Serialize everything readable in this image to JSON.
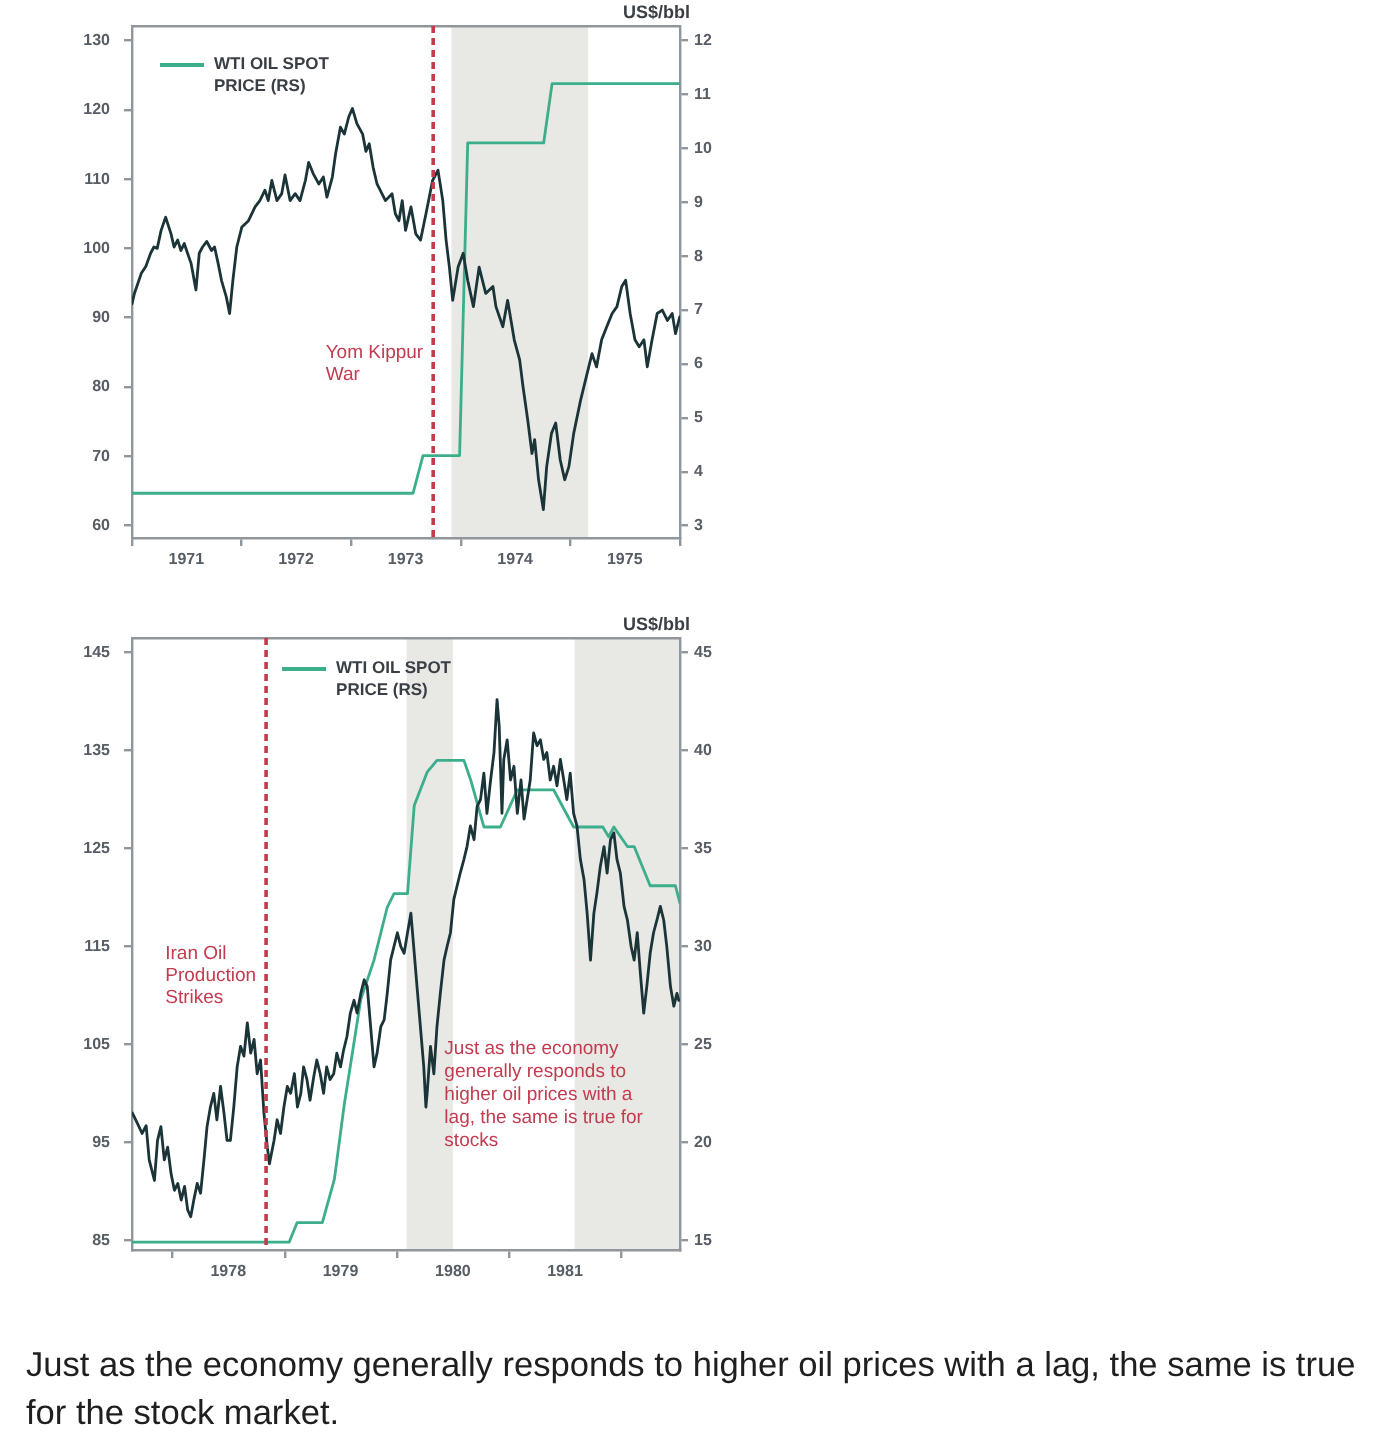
{
  "chart_data": [
    {
      "type": "line",
      "legend": "top left",
      "grid": false,
      "marker": "none",
      "y2label": "US$/bbl",
      "xlim": [
        "1971-01-01",
        "1976-01-01"
      ],
      "xticks": [
        {
          "value": "1971",
          "label": null
        },
        {
          "value": "1971-07",
          "label": "1971"
        },
        {
          "value": "1972",
          "label": null
        },
        {
          "value": "1972-07",
          "label": "1972"
        },
        {
          "value": "1973",
          "label": null
        },
        {
          "value": "1973-07",
          "label": "1973"
        },
        {
          "value": "1974",
          "label": null
        },
        {
          "value": "1974-07",
          "label": "1974"
        },
        {
          "value": "1975",
          "label": null
        },
        {
          "value": "1975-07",
          "label": "1975"
        },
        {
          "value": "1976",
          "label": null
        }
      ],
      "ylim": [
        58.2,
        132.1
      ],
      "yticks": [
        60,
        70,
        80,
        90,
        100,
        110,
        120,
        130
      ],
      "y2lim": [
        2.77,
        12.27
      ],
      "y2ticks": [
        3,
        4,
        5,
        6,
        7,
        8,
        9,
        10,
        11,
        12
      ],
      "ref_lines": [
        {
          "axis": "x",
          "value": "1973-10",
          "label": "Yom Kippur War",
          "color": "#c23b4e",
          "line_style": "dashed"
        }
      ],
      "bands": [
        {
          "axis": "x",
          "from": "1973-12",
          "to": "1975-03",
          "color": "#e8e8e4"
        }
      ],
      "series": [
        {
          "color": "#1b3438",
          "x": [
            "1971-01-01",
            "1971-01-09",
            "1971-02-01",
            "1971-02-16",
            "1971-03-04",
            "1971-03-15",
            "1971-03-26",
            "1971-04-08",
            "1971-04-23",
            "1971-05-11",
            "1971-05-21",
            "1971-06-02",
            "1971-06-13",
            "1971-06-24",
            "1971-07-05",
            "1971-07-17",
            "1971-08-02",
            "1971-08-13",
            "1971-08-24",
            "1971-09-07",
            "1971-09-23",
            "1971-10-03",
            "1971-10-15",
            "1971-10-26",
            "1971-11-11",
            "1971-11-22",
            "1971-12-03",
            "1971-12-16",
            "1972-01-02",
            "1972-01-24",
            "1972-02-15",
            "1972-03-02",
            "1972-03-19",
            "1972-03-30",
            "1972-04-11",
            "1972-04-28",
            "1972-05-14",
            "1972-05-25",
            "1972-06-11",
            "1972-06-28",
            "1972-07-14",
            "1972-08-01",
            "1972-08-12",
            "1972-08-27",
            "1972-09-15",
            "1972-09-30",
            "1972-10-12",
            "1972-10-30",
            "1972-11-10",
            "1972-11-26",
            "1972-12-09",
            "1972-12-24",
            "1973-01-05",
            "1973-01-20",
            "1973-02-08",
            "1973-02-19",
            "1973-03-02",
            "1973-03-15",
            "1973-03-28",
            "1973-04-25",
            "1973-05-17",
            "1973-05-28",
            "1973-06-09",
            "1973-06-20",
            "1973-07-01",
            "1973-07-19",
            "1973-08-04",
            "1973-08-20",
            "1973-09-07",
            "1973-09-29",
            "1973-10-17",
            "1973-11-02",
            "1973-11-13",
            "1973-11-24",
            "1973-12-05",
            "1973-12-23",
            "1974-01-09",
            "1974-01-24",
            "1974-02-12",
            "1974-03-03",
            "1974-03-25",
            "1974-04-18",
            "1974-04-28",
            "1974-05-21",
            "1974-06-06",
            "1974-06-28",
            "1974-07-16",
            "1974-07-27",
            "1974-08-12",
            "1974-08-26",
            "1974-09-04",
            "1974-09-17",
            "1974-10-03",
            "1974-10-14",
            "1974-10-30",
            "1974-11-13",
            "1974-11-28",
            "1974-12-13",
            "1974-12-27",
            "1975-01-12",
            "1975-02-04",
            "1975-02-26",
            "1975-03-14",
            "1975-03-29",
            "1975-04-15",
            "1975-05-02",
            "1975-05-20",
            "1975-06-05",
            "1975-06-21",
            "1975-07-04",
            "1975-07-19",
            "1975-08-04",
            "1975-08-18",
            "1975-09-03",
            "1975-09-14",
            "1975-09-30",
            "1975-10-17",
            "1975-11-03",
            "1975-11-20",
            "1975-12-06",
            "1975-12-17",
            "1975-12-31"
          ],
          "values": [
            92,
            93.5,
            96.4,
            97.4,
            99.3,
            100.2,
            100,
            102.6,
            104.5,
            102.1,
            100.2,
            101.2,
            99.7,
            100.7,
            99.3,
            97.8,
            94,
            99.3,
            100.2,
            101,
            99.7,
            100.2,
            97.8,
            95.4,
            93,
            90.6,
            95.4,
            100.2,
            103.1,
            104,
            106,
            106.9,
            108.4,
            106.9,
            109.8,
            106.9,
            107.9,
            110.6,
            106.9,
            107.9,
            106.9,
            109.8,
            112.4,
            110.8,
            109.3,
            110.3,
            107.4,
            110.3,
            113.7,
            117.5,
            116.5,
            119,
            120.2,
            118,
            116.5,
            114,
            115.1,
            111.7,
            109.3,
            106.9,
            107.9,
            105,
            104,
            106.9,
            102.6,
            106,
            102.1,
            101.2,
            105,
            109.8,
            111.3,
            106.9,
            101.2,
            97.3,
            92.5,
            97.3,
            99.3,
            95.4,
            91.6,
            97.3,
            93.5,
            94.5,
            91.6,
            88.7,
            92.5,
            86.8,
            83.9,
            80.1,
            75.2,
            70.4,
            72.4,
            66.6,
            62.3,
            68.5,
            73.3,
            74.8,
            69.5,
            66.6,
            68.5,
            73.3,
            78.1,
            82,
            84.8,
            82.9,
            86.8,
            88.7,
            90.6,
            91.6,
            94.5,
            95.4,
            90.6,
            86.8,
            85.8,
            86.8,
            82.9,
            86.8,
            90.6,
            91.1,
            89.6,
            90.6,
            87.7,
            90.1
          ]
        },
        {
          "name": "WTI OIL SPOT PRICE (RS)",
          "color": "#3cae8c",
          "axis": "y2",
          "x": [
            "1971-01-01",
            "1973-07-26",
            "1973-08-28",
            "1973-12-28",
            "1974-01-24",
            "1974-10-04",
            "1974-11-01",
            "1976-01-01"
          ],
          "values": [
            3.6,
            3.6,
            4.3,
            4.3,
            10.1,
            10.1,
            11.2,
            11.2
          ]
        }
      ]
    },
    {
      "type": "line",
      "legend": "top left",
      "grid": false,
      "marker": "none",
      "y2label": "US$/bbl",
      "xlim": [
        "1977-08-22",
        "1982-07-10"
      ],
      "xticks": [
        {
          "value": "1978",
          "label": null
        },
        {
          "value": "1978-07",
          "label": "1978"
        },
        {
          "value": "1979",
          "label": null
        },
        {
          "value": "1979-07",
          "label": "1979"
        },
        {
          "value": "1980",
          "label": null
        },
        {
          "value": "1980-07",
          "label": "1980"
        },
        {
          "value": "1981",
          "label": null
        },
        {
          "value": "1981-07",
          "label": "1981"
        },
        {
          "value": "1982",
          "label": null
        }
      ],
      "ylim": [
        84,
        146.5
      ],
      "yticks": [
        85,
        95,
        105,
        115,
        125,
        135,
        145
      ],
      "y2lim": [
        14.5,
        45.75
      ],
      "y2ticks": [
        15,
        20,
        25,
        30,
        35,
        40,
        45
      ],
      "ref_lines": [
        {
          "axis": "x",
          "value": "1978-11",
          "label": "Iran Oil Production Strikes",
          "color": "#c23b4e",
          "line_style": "dashed"
        }
      ],
      "bands": [
        {
          "axis": "x",
          "from": "1980-02",
          "to": "1980-07",
          "color": "#e8e8e4"
        },
        {
          "axis": "x",
          "from": "1981-08",
          "to": "1982-07-10",
          "color": "#e8e8e4"
        }
      ],
      "annotations": [
        "Just as the economy generally responds to higher oil prices with a lag, the same is true for stocks",
        "Just as the economy generally responds to higher oil prices with a lag, the same is true for the stock market."
      ],
      "series": [
        {
          "color": "#1b3438",
          "x": [
            "1977-08-23",
            "1977-09-09",
            "1977-09-24",
            "1977-10-07",
            "1977-10-17",
            "1977-11-03",
            "1977-11-13",
            "1977-11-24",
            "1977-12-05",
            "1977-12-16",
            "1977-12-27",
            "1978-01-07",
            "1978-01-18",
            "1978-01-29",
            "1978-02-09",
            "1978-02-19",
            "1978-03-01",
            "1978-03-11",
            "1978-03-22",
            "1978-04-02",
            "1978-04-13",
            "1978-04-23",
            "1978-05-04",
            "1978-05-15",
            "1978-05-25",
            "1978-06-06",
            "1978-06-17",
            "1978-06-27",
            "1978-07-08",
            "1978-07-19",
            "1978-07-30",
            "1978-08-10",
            "1978-08-21",
            "1978-09-01",
            "1978-09-12",
            "1978-09-23",
            "1978-10-03",
            "1978-10-14",
            "1978-10-25",
            "1978-11-05",
            "1978-11-12",
            "1978-11-27",
            "1978-12-07",
            "1978-12-18",
            "1978-12-29",
            "1979-01-09",
            "1979-01-20",
            "1979-02-01",
            "1979-02-11",
            "1979-02-22",
            "1979-03-03",
            "1979-03-14",
            "1979-03-24",
            "1979-04-05",
            "1979-04-15",
            "1979-04-26",
            "1979-05-07",
            "1979-05-17",
            "1979-05-28",
            "1979-06-09",
            "1979-06-19",
            "1979-07-01",
            "1979-07-11",
            "1979-07-22",
            "1979-08-02",
            "1979-08-14",
            "1979-08-24",
            "1979-09-05",
            "1979-09-16",
            "1979-09-26",
            "1979-10-18",
            "1979-10-28",
            "1979-11-09",
            "1979-11-20",
            "1979-11-30",
            "1979-12-11",
            "1979-12-22",
            "1980-01-02",
            "1980-01-13",
            "1980-01-24",
            "1980-02-04",
            "1980-02-15",
            "1980-02-26",
            "1980-03-06",
            "1980-03-17",
            "1980-03-28",
            "1980-04-04",
            "1980-04-08",
            "1980-04-19",
            "1980-04-30",
            "1980-05-10",
            "1980-05-21",
            "1980-06-02",
            "1980-06-12",
            "1980-06-23",
            "1980-07-04",
            "1980-07-14",
            "1980-07-25",
            "1980-08-06",
            "1980-08-16",
            "1980-08-27",
            "1980-09-08",
            "1980-09-18",
            "1980-09-29",
            "1980-10-10",
            "1980-10-20",
            "1980-11-01",
            "1980-11-12",
            "1980-11-22",
            "1980-11-29",
            "1980-12-08",
            "1980-12-14",
            "1980-12-25",
            "1981-01-05",
            "1981-01-16",
            "1981-01-27",
            "1981-02-08",
            "1981-02-18",
            "1981-02-28",
            "1981-03-10",
            "1981-03-21",
            "1981-04-01",
            "1981-04-12",
            "1981-04-23",
            "1981-05-03",
            "1981-05-14",
            "1981-05-25",
            "1981-06-05",
            "1981-06-16",
            "1981-06-27",
            "1981-07-07",
            "1981-07-18",
            "1981-07-29",
            "1981-08-09",
            "1981-08-20",
            "1981-09-01",
            "1981-09-11",
            "1981-09-22",
            "1981-10-03",
            "1981-10-13",
            "1981-10-24",
            "1981-11-05",
            "1981-11-15",
            "1981-11-26",
            "1981-12-07",
            "1981-12-17",
            "1981-12-28",
            "1982-01-09",
            "1982-01-20",
            "1982-02-01",
            "1982-02-11",
            "1982-02-21",
            "1982-03-03",
            "1982-03-14",
            "1982-03-24",
            "1982-04-04",
            "1982-04-15",
            "1982-04-26",
            "1982-05-07",
            "1982-05-18",
            "1982-05-28",
            "1982-06-09",
            "1982-06-20",
            "1982-06-30",
            "1982-07-06"
          ],
          "values": [
            98,
            96.9,
            95.9,
            96.7,
            93.2,
            91.1,
            95.2,
            96.6,
            93.2,
            94.5,
            91.8,
            90.1,
            90.8,
            89.1,
            90.5,
            88.1,
            87.4,
            89.1,
            90.8,
            89.8,
            93.2,
            96.6,
            98.6,
            100,
            97.3,
            100.7,
            98,
            95.2,
            95.2,
            98.6,
            102.7,
            104.8,
            103.8,
            107.2,
            104.1,
            105.5,
            102,
            103.4,
            98,
            94.5,
            92.8,
            95.2,
            97.3,
            95.9,
            98.6,
            100.7,
            100,
            102,
            98.6,
            100,
            102.7,
            101.4,
            99.3,
            101.7,
            103.4,
            102,
            100,
            102.7,
            101.4,
            102,
            104.1,
            102.7,
            104.4,
            105.8,
            108.2,
            109.5,
            108.2,
            110.2,
            111.6,
            110.9,
            102.7,
            104.1,
            106.8,
            107.5,
            110.2,
            113.6,
            115,
            116.4,
            115,
            114.3,
            116.4,
            118.4,
            114.3,
            110.9,
            106.8,
            102.7,
            98.6,
            100,
            104.8,
            102,
            106.8,
            110.2,
            113.6,
            115,
            116.4,
            119.8,
            121.1,
            122.5,
            123.9,
            125.2,
            127.3,
            125.9,
            129.3,
            130,
            132.7,
            128.6,
            132,
            134.8,
            140.2,
            137.5,
            128.6,
            134.1,
            136.1,
            132,
            133.4,
            128.6,
            132,
            128,
            130,
            132,
            136.8,
            135.5,
            136.1,
            134.1,
            134.8,
            132,
            133.4,
            131.4,
            134.1,
            132,
            130,
            132.7,
            128.6,
            127.3,
            123.9,
            121.8,
            118.4,
            113.6,
            118.4,
            120.5,
            123.2,
            125.2,
            122.5,
            125.9,
            126.6,
            123.9,
            122.5,
            119.1,
            117.7,
            115,
            113.6,
            116.4,
            112.3,
            108.2,
            110.9,
            114.3,
            116.4,
            117.7,
            119.1,
            117.7,
            115,
            110.9,
            108.9,
            110.2,
            109.5
          ]
        },
        {
          "name": "WTI OIL SPOT PRICE (RS)",
          "color": "#3cae8c",
          "axis": "y2",
          "x": [
            "1977-08-22",
            "1979-01-15",
            "1979-02-10",
            "1979-05-03",
            "1979-06-11",
            "1979-07-13",
            "1979-08-09",
            "1979-09-05",
            "1979-10-18",
            "1979-11-30",
            "1979-12-22",
            "1980-02-04",
            "1980-02-26",
            "1980-04-08",
            "1980-05-10",
            "1980-08-06",
            "1980-08-28",
            "1980-10-10",
            "1980-12-03",
            "1981-01-27",
            "1981-05-25",
            "1981-07-29",
            "1981-11-01",
            "1981-11-20",
            "1981-12-07",
            "1982-01-20",
            "1982-02-11",
            "1982-04-04",
            "1982-06-25",
            "1982-07-10"
          ],
          "values": [
            14.9,
            14.9,
            15.9,
            15.9,
            18.1,
            21.9,
            24.6,
            27.3,
            29.3,
            32,
            32.7,
            32.7,
            37.2,
            38.9,
            39.5,
            39.5,
            38.5,
            36.1,
            36.1,
            38,
            38,
            36.1,
            36.1,
            35.6,
            36.1,
            35.1,
            35.1,
            33.1,
            33.1,
            32.2
          ]
        }
      ]
    }
  ]
}
